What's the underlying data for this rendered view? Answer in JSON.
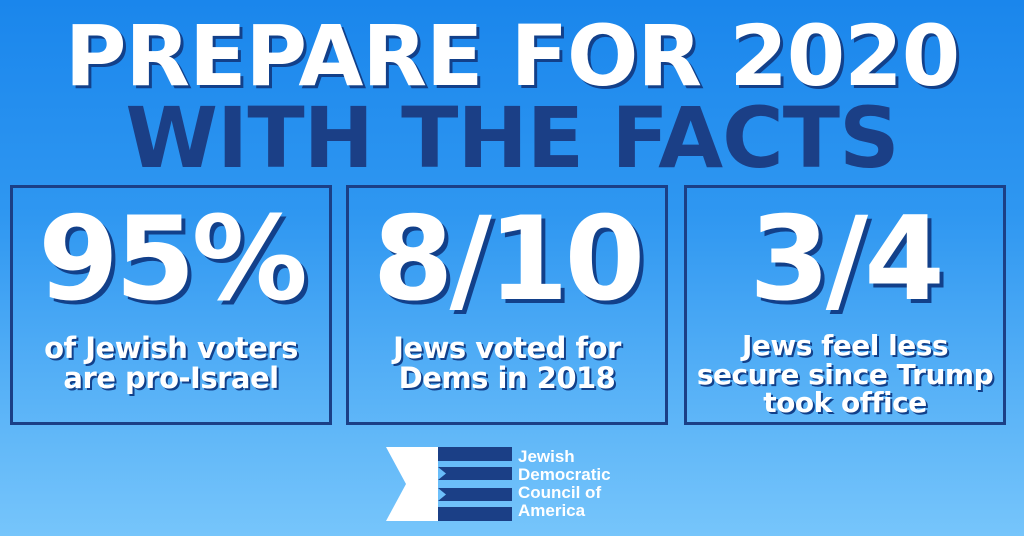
{
  "headline": {
    "line1": "PREPARE FOR 2020",
    "line2": "WITH THE FACTS"
  },
  "stats": [
    {
      "value": "95%",
      "caption": "of Jewish voters are pro-Israel"
    },
    {
      "value": "8/10",
      "caption": "Jews voted for Dems in 2018"
    },
    {
      "value": "3/4",
      "caption": "Jews feel less secure since Trump took office"
    }
  ],
  "logo": {
    "lines": [
      "Jewish",
      "Democratic",
      "Council of",
      "America"
    ]
  },
  "colors": {
    "navy": "#1b3f86",
    "sky_top": "#1a86ec",
    "sky_bottom": "#76c5fb",
    "white": "#ffffff"
  }
}
